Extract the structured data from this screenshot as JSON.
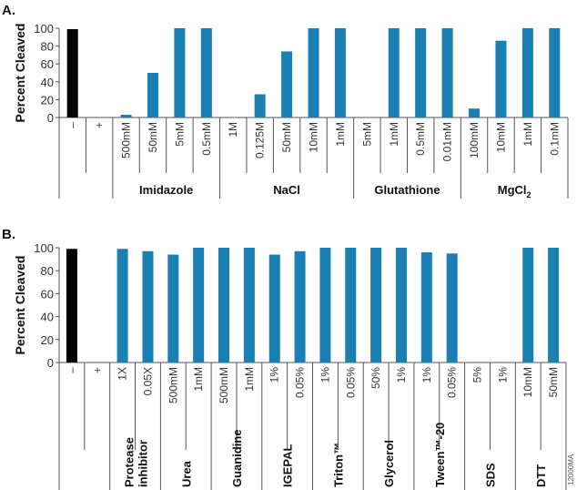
{
  "colors": {
    "control": "#000000",
    "treatment": "#1a7fb2",
    "axis": "#555555"
  },
  "figure_code": "12000MA",
  "chart_data": [
    {
      "panel": "A.",
      "type": "bar",
      "ylabel": "Percent Cleaved",
      "ylim": [
        0,
        100
      ],
      "yticks": [
        0,
        20,
        40,
        60,
        80,
        100
      ],
      "grid": false,
      "groups": [
        {
          "label": "",
          "bars": [
            {
              "x": "–",
              "value": 99,
              "control": true
            },
            {
              "x": "+",
              "value": 0,
              "control": true
            }
          ]
        },
        {
          "label": "Imidazole",
          "bars": [
            {
              "x": "500mM",
              "value": 3
            },
            {
              "x": "50mM",
              "value": 50
            },
            {
              "x": "5mM",
              "value": 100
            },
            {
              "x": "0.5mM",
              "value": 100
            }
          ]
        },
        {
          "label": "NaCl",
          "bars": [
            {
              "x": "1M",
              "value": 0
            },
            {
              "x": "0.125M",
              "value": 26
            },
            {
              "x": "50mM",
              "value": 74
            },
            {
              "x": "10mM",
              "value": 100
            },
            {
              "x": "1mM",
              "value": 100
            }
          ]
        },
        {
          "label": "Glutathione",
          "bars": [
            {
              "x": "5mM",
              "value": 0
            },
            {
              "x": "1mM",
              "value": 100
            },
            {
              "x": "0.5mM",
              "value": 100
            },
            {
              "x": "0.01mM",
              "value": 100
            }
          ]
        },
        {
          "label": "MgCl",
          "sub": "2",
          "bars": [
            {
              "x": "100mM",
              "value": 10
            },
            {
              "x": "10mM",
              "value": 86
            },
            {
              "x": "1mM",
              "value": 100
            },
            {
              "x": "0.1mM",
              "value": 100
            }
          ]
        }
      ]
    },
    {
      "panel": "B.",
      "type": "bar",
      "ylabel": "Percent Cleaved",
      "ylim": [
        0,
        100
      ],
      "yticks": [
        0,
        20,
        40,
        60,
        80,
        100
      ],
      "grid": false,
      "groups": [
        {
          "label": "",
          "bars": [
            {
              "x": "–",
              "value": 99,
              "control": true
            },
            {
              "x": "+",
              "value": 0,
              "control": true
            }
          ]
        },
        {
          "label": "Protease",
          "label2": "inhibitor",
          "bars": [
            {
              "x": "1X",
              "value": 99
            },
            {
              "x": "0.05X",
              "value": 97
            }
          ]
        },
        {
          "label": "Urea",
          "bars": [
            {
              "x": "500mM",
              "value": 94
            },
            {
              "x": "1mM",
              "value": 100
            }
          ]
        },
        {
          "label": "Guanidine",
          "bars": [
            {
              "x": "500mM",
              "value": 100
            },
            {
              "x": "1mM",
              "value": 100
            }
          ]
        },
        {
          "label": "IGEPAL",
          "bars": [
            {
              "x": "1%",
              "value": 94
            },
            {
              "x": "0.05%",
              "value": 97
            }
          ]
        },
        {
          "label": "Triton™",
          "bars": [
            {
              "x": "1%",
              "value": 100
            },
            {
              "x": "0.05%",
              "value": 100
            }
          ]
        },
        {
          "label": "Glycerol",
          "bars": [
            {
              "x": "50%",
              "value": 100
            },
            {
              "x": "1%",
              "value": 100
            }
          ]
        },
        {
          "label": "Tween™-20",
          "bars": [
            {
              "x": "1%",
              "value": 96
            },
            {
              "x": "0.05%",
              "value": 95
            }
          ]
        },
        {
          "label": "SDS",
          "bars": [
            {
              "x": "5%",
              "value": 0
            },
            {
              "x": "1%",
              "value": 0
            }
          ]
        },
        {
          "label": "DTT",
          "bars": [
            {
              "x": "10mM",
              "value": 100
            },
            {
              "x": "50mM",
              "value": 100
            }
          ]
        }
      ]
    }
  ]
}
